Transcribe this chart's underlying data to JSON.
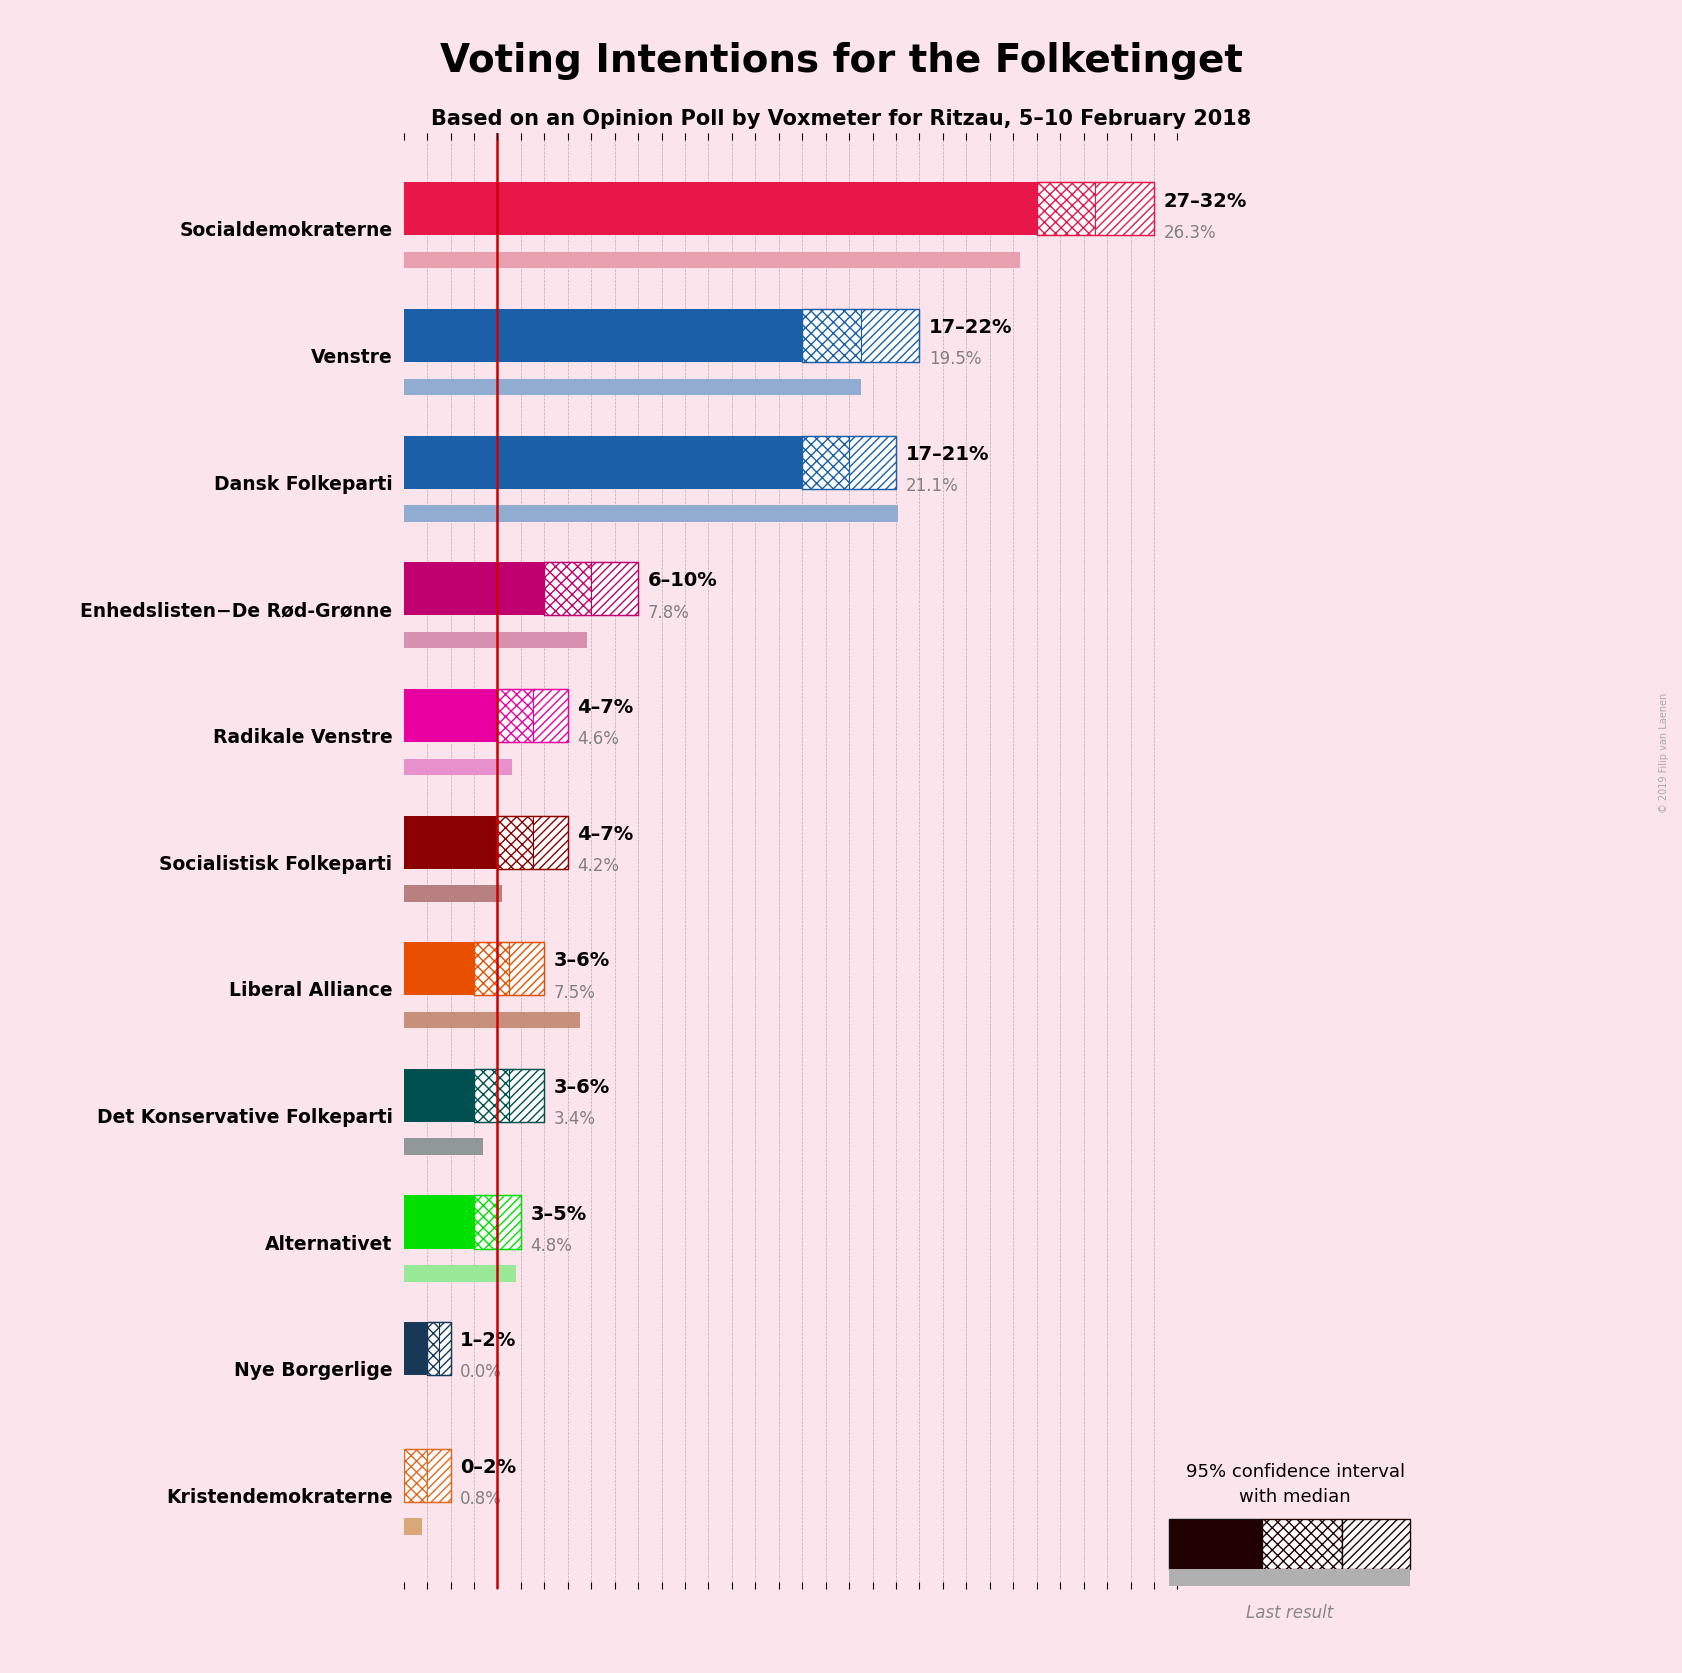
{
  "title": "Voting Intentions for the Folketinget",
  "subtitle": "Based on an Opinion Poll by Voxmeter for Ritzau, 5–10 February 2018",
  "background_color": "#fce4ec",
  "parties": [
    {
      "name": "Socialdemokraterne",
      "low": 27,
      "high": 32,
      "last": 26.3,
      "color": "#e8174a",
      "last_color": "#e8a0b0",
      "hatch_color": "#e8174a"
    },
    {
      "name": "Venstre",
      "low": 17,
      "high": 22,
      "last": 19.5,
      "color": "#1a5fa8",
      "last_color": "#90acd0",
      "hatch_color": "#1a5fa8"
    },
    {
      "name": "Dansk Folkeparti",
      "low": 17,
      "high": 21,
      "last": 21.1,
      "color": "#1a5fa8",
      "last_color": "#90acd0",
      "hatch_color": "#1a5fa8"
    },
    {
      "name": "Enhedslisten−De Rød-Grønne",
      "low": 6,
      "high": 10,
      "last": 7.8,
      "color": "#c0006e",
      "last_color": "#d890b0",
      "hatch_color": "#c0006e"
    },
    {
      "name": "Radikale Venstre",
      "low": 4,
      "high": 7,
      "last": 4.6,
      "color": "#e800a0",
      "last_color": "#e890cc",
      "hatch_color": "#e800a0"
    },
    {
      "name": "Socialistisk Folkeparti",
      "low": 4,
      "high": 7,
      "last": 4.2,
      "color": "#8b0000",
      "last_color": "#b88080",
      "hatch_color": "#8b0000"
    },
    {
      "name": "Liberal Alliance",
      "low": 3,
      "high": 6,
      "last": 7.5,
      "color": "#e85000",
      "last_color": "#c8907a",
      "hatch_color": "#e85000"
    },
    {
      "name": "Det Konservative Folkeparti",
      "low": 3,
      "high": 6,
      "last": 3.4,
      "color": "#005050",
      "last_color": "#909898",
      "hatch_color": "#005050"
    },
    {
      "name": "Alternativet",
      "low": 3,
      "high": 5,
      "last": 4.8,
      "color": "#00e000",
      "last_color": "#98e898",
      "hatch_color": "#00e000"
    },
    {
      "name": "Nye Borgerlige",
      "low": 1,
      "high": 2,
      "last": 0.0,
      "color": "#183858",
      "last_color": "#909090",
      "hatch_color": "#183858"
    },
    {
      "name": "Kristendemokraterne",
      "low": 0,
      "high": 2,
      "last": 0.8,
      "color": "#e06820",
      "last_color": "#d8a878",
      "hatch_color": "#e06820"
    }
  ],
  "range_labels": [
    "27–32%",
    "17–22%",
    "17–21%",
    "6–10%",
    "4–7%",
    "4–7%",
    "3–6%",
    "3–6%",
    "3–5%",
    "1–2%",
    "0–2%"
  ],
  "last_labels": [
    "26.3%",
    "19.5%",
    "21.1%",
    "7.8%",
    "4.6%",
    "4.2%",
    "7.5%",
    "3.4%",
    "4.8%",
    "0.0%",
    "0.8%"
  ],
  "red_line_x": 4.0,
  "axis_max": 33,
  "legend_text": "95% confidence interval\nwith median",
  "legend_last_text": "Last result",
  "watermark": "© 2019 Filip van Laenen"
}
